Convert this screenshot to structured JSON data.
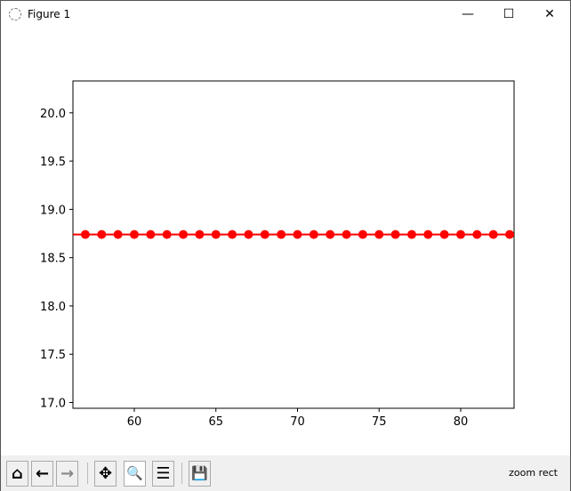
{
  "window": {
    "title": "Figure 1",
    "minimize": "—",
    "maximize": "☐",
    "close": "✕"
  },
  "toolbar": {
    "buttons": [
      {
        "name": "home",
        "glyph": "⌂"
      },
      {
        "name": "back",
        "glyph": "←"
      },
      {
        "name": "forward",
        "glyph": "→"
      },
      {
        "name": "pan",
        "glyph": "✥"
      },
      {
        "name": "zoom",
        "glyph": "🔍"
      },
      {
        "name": "configure-subplots",
        "glyph": "☰"
      },
      {
        "name": "save",
        "glyph": "💾"
      }
    ],
    "active": "zoom",
    "status": "zoom rect"
  },
  "chart_data": {
    "type": "line",
    "x": [
      57,
      58,
      59,
      60,
      61,
      62,
      63,
      64,
      65,
      66,
      67,
      68,
      69,
      70,
      71,
      72,
      73,
      74,
      75,
      76,
      77,
      78,
      79,
      80,
      81,
      82,
      83
    ],
    "y": [
      18.74,
      18.74,
      18.74,
      18.74,
      18.74,
      18.74,
      18.74,
      18.74,
      18.74,
      18.74,
      18.74,
      18.74,
      18.74,
      18.74,
      18.74,
      18.74,
      18.74,
      18.74,
      18.74,
      18.74,
      18.74,
      18.74,
      18.74,
      18.74,
      18.74,
      18.74,
      18.74
    ],
    "hline": 18.74,
    "color": "#ff0000",
    "marker": "circle",
    "xlim": [
      56.24,
      83.27
    ],
    "ylim": [
      16.94,
      20.33
    ],
    "xticks": [
      "60",
      "65",
      "70",
      "75",
      "80"
    ],
    "xtick_values": [
      60,
      65,
      70,
      75,
      80
    ],
    "yticks": [
      "17.0",
      "17.5",
      "18.0",
      "18.5",
      "19.0",
      "19.5",
      "20.0"
    ],
    "ytick_values": [
      17.0,
      17.5,
      18.0,
      18.5,
      19.0,
      19.5,
      20.0
    ],
    "grid": false,
    "title": "",
    "xlabel": "",
    "ylabel": ""
  }
}
